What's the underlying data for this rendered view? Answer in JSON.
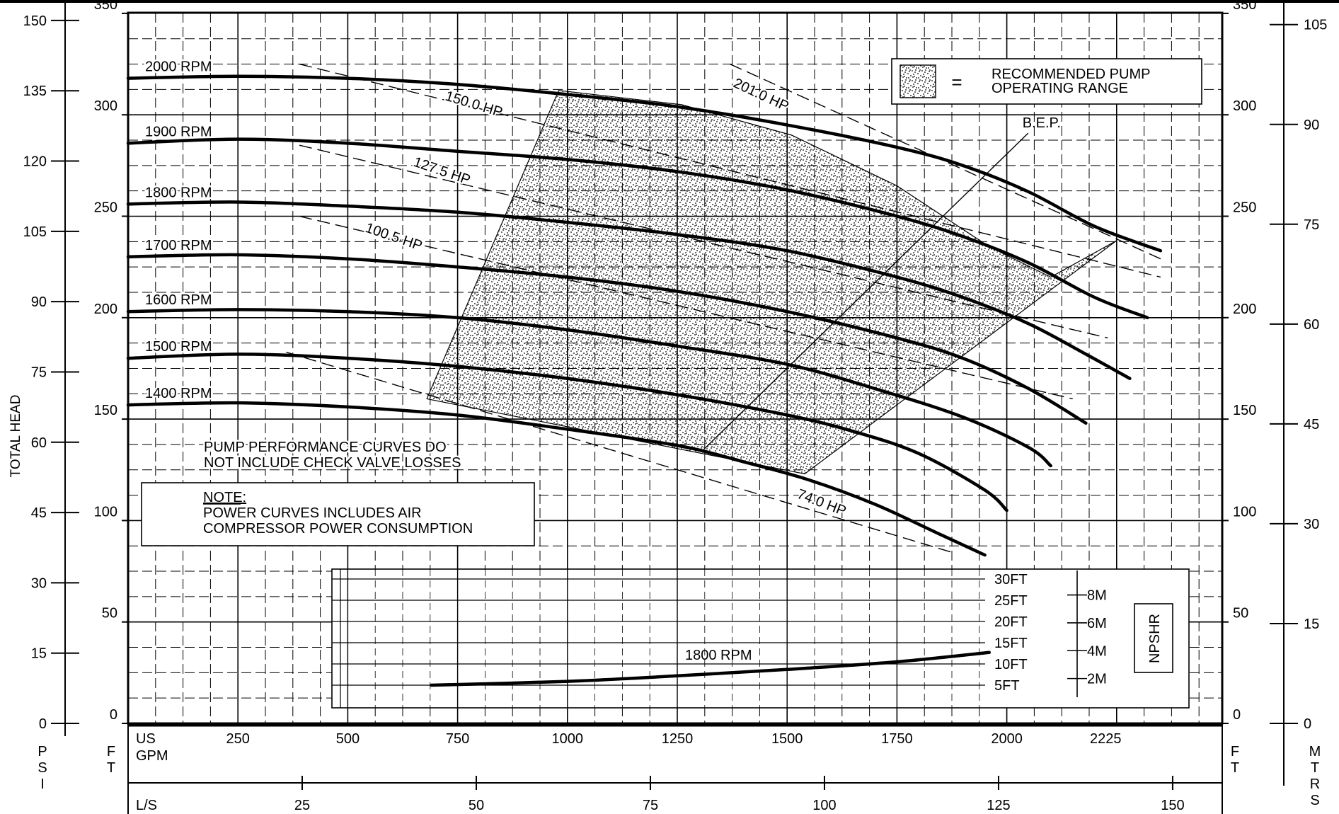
{
  "chart_data": {
    "type": "line",
    "axes": {
      "left_psi": {
        "ticks": [
          "0",
          "15",
          "30",
          "45",
          "60",
          "75",
          "90",
          "105",
          "120",
          "135",
          "150"
        ],
        "unit_letters": [
          "P",
          "S",
          "I"
        ],
        "title": "TOTAL HEAD"
      },
      "left_ft": {
        "ticks": [
          "0",
          "50",
          "100",
          "150",
          "200",
          "250",
          "300",
          "350"
        ],
        "unit_letters": [
          "F",
          "T"
        ]
      },
      "right_ft": {
        "ticks": [
          "0",
          "50",
          "100",
          "150",
          "200",
          "250",
          "300",
          "350"
        ],
        "unit_letters": [
          "F",
          "T"
        ]
      },
      "right_mtrs": {
        "ticks": [
          "0",
          "15",
          "30",
          "45",
          "60",
          "75",
          "90",
          "105"
        ],
        "unit_letters": [
          "M",
          "T",
          "R",
          "S"
        ]
      },
      "x_gpm": {
        "ticks": [
          "250",
          "500",
          "750",
          "1000",
          "1250",
          "1500",
          "1750",
          "2000",
          "2225"
        ],
        "label_top": "US",
        "label_bottom": "GPM"
      },
      "x_ls": {
        "ticks": [
          "25",
          "50",
          "75",
          "100",
          "125",
          "150"
        ],
        "label": "L/S"
      },
      "xlim_gpm": [
        0,
        2490
      ],
      "ylim_ft": [
        0,
        350
      ],
      "grid": true
    },
    "series": [
      {
        "name": "2000 RPM",
        "x": [
          0,
          250,
          500,
          750,
          1000,
          1250,
          1500,
          1750,
          1900,
          2050,
          2200,
          2350
        ],
        "y": [
          318,
          319,
          318,
          315,
          310,
          304,
          295,
          284,
          275,
          262,
          245,
          233
        ]
      },
      {
        "name": "1900 RPM",
        "x": [
          0,
          250,
          500,
          750,
          1000,
          1250,
          1500,
          1750,
          1900,
          2050,
          2200,
          2320
        ],
        "y": [
          286,
          288,
          286,
          282,
          278,
          272,
          263,
          250,
          240,
          227,
          210,
          200
        ]
      },
      {
        "name": "1800 RPM",
        "x": [
          0,
          250,
          500,
          750,
          1000,
          1250,
          1500,
          1750,
          1900,
          2050,
          2180,
          2280
        ],
        "y": [
          256,
          257,
          255,
          252,
          247,
          241,
          233,
          220,
          210,
          197,
          182,
          170
        ]
      },
      {
        "name": "1700 RPM",
        "x": [
          0,
          250,
          500,
          750,
          1000,
          1250,
          1500,
          1750,
          1900,
          2050,
          2180
        ],
        "y": [
          230,
          231,
          229,
          225,
          220,
          213,
          203,
          190,
          180,
          165,
          148
        ]
      },
      {
        "name": "1600 RPM",
        "x": [
          0,
          250,
          500,
          750,
          1000,
          1250,
          1500,
          1700,
          1900,
          2050,
          2100
        ],
        "y": [
          203,
          204,
          203,
          200,
          194,
          186,
          177,
          165,
          151,
          136,
          127
        ]
      },
      {
        "name": "1500 RPM",
        "x": [
          0,
          250,
          500,
          750,
          1000,
          1250,
          1500,
          1650,
          1800,
          1950,
          2000
        ],
        "y": [
          180,
          182,
          180,
          176,
          170,
          162,
          152,
          144,
          133,
          115,
          105
        ]
      },
      {
        "name": "1400 RPM",
        "x": [
          0,
          250,
          500,
          750,
          1000,
          1250,
          1400,
          1550,
          1700,
          1850,
          1950
        ],
        "y": [
          157,
          158,
          156,
          152,
          145,
          137,
          129,
          120,
          108,
          93,
          83
        ]
      }
    ],
    "power_curves": [
      {
        "name": "201.0 HP",
        "x": [
          1370,
          2350
        ],
        "y": [
          325,
          229
        ]
      },
      {
        "name": "150.0 HP",
        "x": [
          390,
          2350
        ],
        "y": [
          325,
          220
        ]
      },
      {
        "name": "127.5 HP",
        "x": [
          390,
          2230
        ],
        "y": [
          285,
          190
        ]
      },
      {
        "name": "100.5 HP",
        "x": [
          390,
          2150
        ],
        "y": [
          250,
          160
        ]
      },
      {
        "name": "74.0 HP",
        "x": [
          360,
          1880
        ],
        "y": [
          183,
          84
        ]
      }
    ],
    "operating_range": {
      "polygon_x": [
        680,
        980,
        1260,
        1510,
        1750,
        1960,
        2100,
        2250,
        1540
      ],
      "polygon_y": [
        160,
        312,
        305,
        290,
        265,
        235,
        220,
        238,
        123
      ],
      "legend": [
        "RECOMMENDED PUMP",
        "OPERATING RANGE"
      ],
      "legend_sep": "="
    },
    "bep": {
      "label": "B.E.P.",
      "x": [
        1310,
        1960
      ],
      "y": [
        135,
        270
      ]
    },
    "annotations": {
      "performance_note": [
        "PUMP PERFORMANCE CURVES DO",
        "NOT INCLUDE CHECK VALVE LOSSES"
      ],
      "note_title": "NOTE:",
      "note_lines": [
        "POWER CURVES INCLUDES AIR",
        "COMPRESSOR POWER CONSUMPTION"
      ]
    },
    "npshr": {
      "title": "NPSHR",
      "series_name": "1800 RPM",
      "ft_ticks": [
        "30FT",
        "25FT",
        "20FT",
        "15FT",
        "10FT",
        "5FT"
      ],
      "m_ticks": [
        "8M",
        "6M",
        "4M",
        "2M"
      ],
      "x": [
        690,
        1000,
        1250,
        1500,
        1750,
        1960
      ],
      "y_ft": [
        5,
        5.9,
        7.2,
        8.7,
        10.5,
        12.7
      ]
    }
  }
}
